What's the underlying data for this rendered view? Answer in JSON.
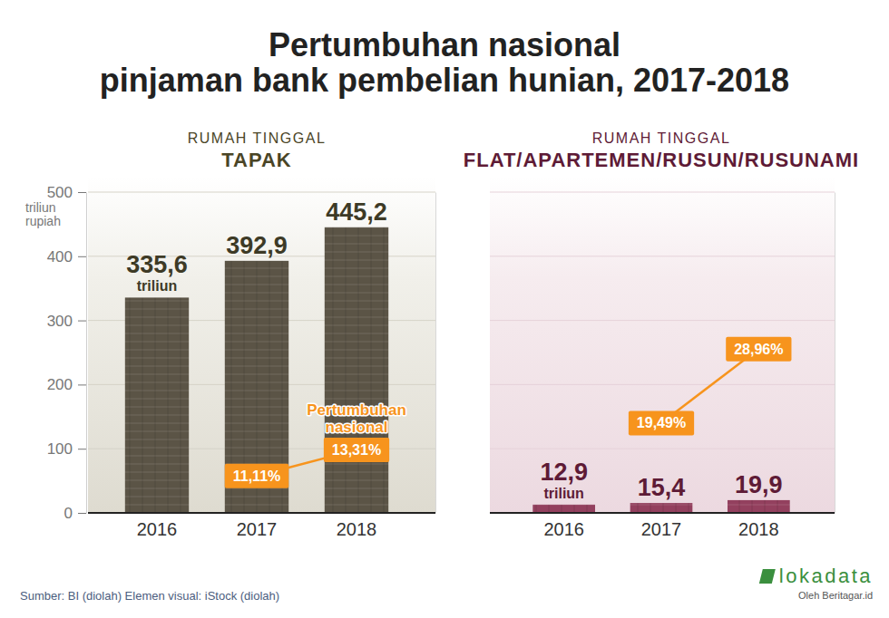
{
  "title": [
    "Pertumbuhan nasional",
    "pinjaman bank pembelian hunian, 2017-2018"
  ],
  "source": "Sumber: BI (diolah) Elemen visual: iStock (diolah)",
  "brand": "lokadata",
  "brand_sub": "Oleh Beritagar.id",
  "chart_data": [
    {
      "type": "bar",
      "subtitle": "RUMAH TINGGAL",
      "title": "TAPAK",
      "y_label": "triliun rupiah",
      "categories": [
        "2016",
        "2017",
        "2018"
      ],
      "series": [
        {
          "type": "bar",
          "color": "#5b5446",
          "values": [
            335.6,
            392.9,
            445.2
          ],
          "value_labels": [
            "335,6",
            "392,9",
            "445,2"
          ]
        },
        {
          "name": "Pertumbuhan nasional",
          "type": "line",
          "axis": "y2",
          "color": "#f7941d",
          "values": [
            null,
            11.11,
            13.31
          ],
          "value_labels": [
            null,
            "11,11%",
            "13,31%"
          ]
        }
      ],
      "annotations": [
        "triliun"
      ],
      "ylim": [
        0,
        500
      ],
      "yticks": [
        0,
        100,
        200,
        300,
        400,
        500
      ],
      "y2lim": [
        8,
        35
      ],
      "y2ticks": [],
      "grid": true,
      "data_labels": true
    },
    {
      "type": "bar",
      "subtitle": "RUMAH TINGGAL",
      "title": "FLAT/APARTEMEN/RUSUN/RUSUNAMI",
      "categories": [
        "2016",
        "2017",
        "2018"
      ],
      "series": [
        {
          "type": "bar",
          "color": "#93405e",
          "values": [
            12.9,
            15.4,
            19.9
          ],
          "value_labels": [
            "12,9",
            "15,4",
            "19,9"
          ]
        },
        {
          "type": "line",
          "axis": "y2",
          "color": "#f7941d",
          "values": [
            null,
            19.49,
            28.96
          ],
          "value_labels": [
            null,
            "19,49%",
            "28,96%"
          ]
        }
      ],
      "annotations": [
        "triliun"
      ],
      "ylim": [
        0,
        500
      ],
      "yticks": [
        0,
        100,
        200,
        300,
        400,
        500
      ],
      "y2lim": [
        8,
        49
      ],
      "y2ticks": [],
      "grid": true,
      "data_labels": true,
      "tick_labels": "x"
    }
  ]
}
